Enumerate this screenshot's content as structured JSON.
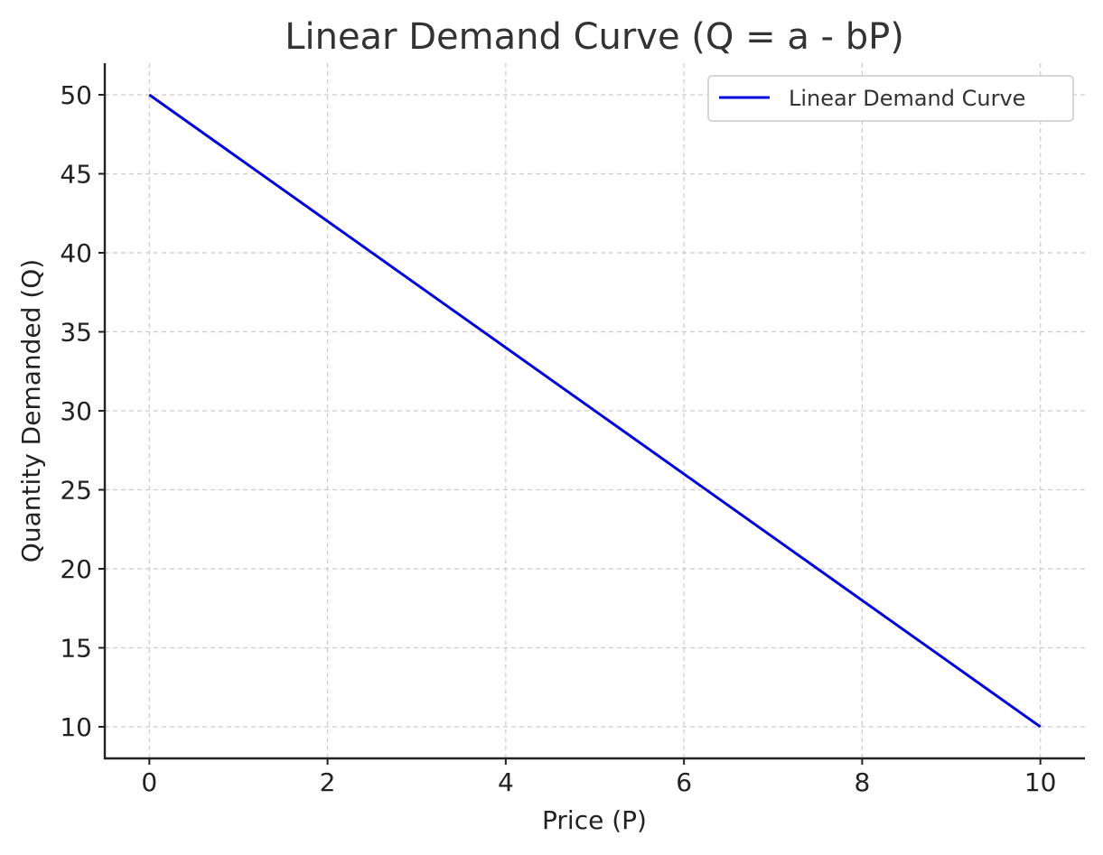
{
  "chart_data": {
    "type": "line",
    "title": "Linear Demand Curve (Q = a - bP)",
    "xlabel": "Price (P)",
    "ylabel": "Quantity Demanded (Q)",
    "xlim": [
      -0.5,
      10.5
    ],
    "ylim": [
      8,
      52
    ],
    "x_ticks": [
      0,
      2,
      4,
      6,
      8,
      10
    ],
    "y_ticks": [
      10,
      15,
      20,
      25,
      30,
      35,
      40,
      45,
      50
    ],
    "grid": true,
    "legend_position": "top-right",
    "series": [
      {
        "name": "Linear Demand Curve",
        "color": "#0000dd",
        "x": [
          0,
          10
        ],
        "y": [
          50,
          10
        ]
      }
    ]
  }
}
